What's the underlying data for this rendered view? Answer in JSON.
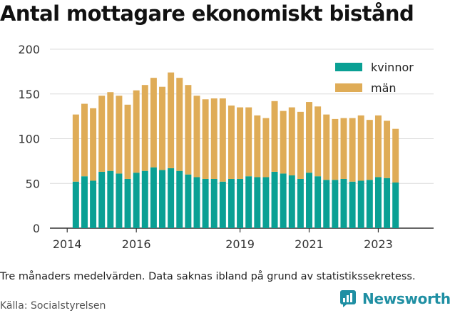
{
  "title": "Antal mottagare ekonomiskt bistånd",
  "caption": "Tre månaders medelvärden. Data saknas ibland på grund av statistikssekretess.",
  "source": "Källa: Socialstyrelsen",
  "brand": {
    "name": "Newsworthy",
    "icon": "newsworthy-logo-icon",
    "color": "#1f8fa3"
  },
  "colors": {
    "kvinnor": "#0aa094",
    "man": "#dfac57"
  },
  "chart_data": {
    "type": "bar",
    "stacked": true,
    "x_tick_labels": [
      "2014",
      "2016",
      "2019",
      "2021",
      "2023"
    ],
    "x_ticks": [
      2014.0,
      2016.0,
      2019.0,
      2021.0,
      2023.0
    ],
    "xlim": [
      2013.5,
      2024.6
    ],
    "ylim": [
      0,
      200
    ],
    "yticks": [
      0,
      50,
      100,
      150,
      200
    ],
    "grid": true,
    "legend_position": "top-right",
    "x": [
      2014.25,
      2014.5,
      2014.75,
      2015.0,
      2015.25,
      2015.5,
      2015.75,
      2016.0,
      2016.25,
      2016.5,
      2016.75,
      2017.0,
      2017.25,
      2017.5,
      2017.75,
      2018.0,
      2018.25,
      2018.5,
      2018.75,
      2019.0,
      2019.25,
      2019.5,
      2019.75,
      2020.0,
      2020.25,
      2020.5,
      2020.75,
      2021.0,
      2021.25,
      2021.5,
      2021.75,
      2022.0,
      2022.25,
      2022.5,
      2022.75,
      2023.0,
      2023.25,
      2023.5
    ],
    "series": [
      {
        "name": "kvinnor",
        "values": [
          52,
          58,
          53,
          63,
          64,
          61,
          55,
          62,
          64,
          68,
          65,
          67,
          64,
          60,
          57,
          55,
          55,
          52,
          55,
          55,
          58,
          57,
          57,
          63,
          61,
          59,
          55,
          62,
          58,
          54,
          54,
          55,
          52,
          53,
          54,
          57,
          56,
          51
        ]
      },
      {
        "name": "män",
        "values": [
          75,
          81,
          81,
          85,
          88,
          87,
          83,
          92,
          96,
          100,
          93,
          107,
          104,
          100,
          91,
          89,
          90,
          93,
          82,
          80,
          77,
          69,
          66,
          79,
          70,
          76,
          75,
          79,
          78,
          73,
          68,
          68,
          71,
          73,
          67,
          69,
          64,
          60
        ]
      }
    ]
  }
}
